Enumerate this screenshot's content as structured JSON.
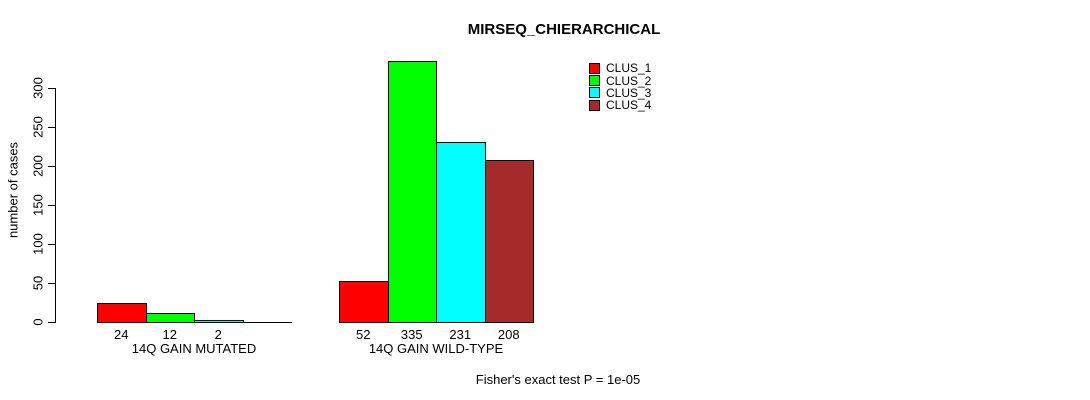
{
  "chart_data": {
    "type": "bar",
    "title": "MIRSEQ_CHIERARCHICAL",
    "ylabel": "number of cases",
    "xlabel": "",
    "yticks": [
      0,
      50,
      100,
      150,
      200,
      250,
      300
    ],
    "ylim": [
      0,
      340
    ],
    "grid": false,
    "legend_position": "top-right-inside",
    "categories": [
      "14Q GAIN MUTATED",
      "14Q GAIN WILD-TYPE"
    ],
    "series": [
      {
        "name": "CLUS_1",
        "color": "#ff0000",
        "values": [
          24,
          52
        ]
      },
      {
        "name": "CLUS_2",
        "color": "#00ff00",
        "values": [
          12,
          335
        ]
      },
      {
        "name": "CLUS_3",
        "color": "#00ffff",
        "values": [
          2,
          231
        ]
      },
      {
        "name": "CLUS_4",
        "color": "#a52a2a",
        "values": [
          0,
          208
        ]
      }
    ],
    "bar_value_labels": [
      [
        "24",
        "12",
        "2",
        ""
      ],
      [
        "52",
        "335",
        "231",
        "208"
      ]
    ],
    "annotation": "Fisher's exact test P = 1e-05"
  }
}
